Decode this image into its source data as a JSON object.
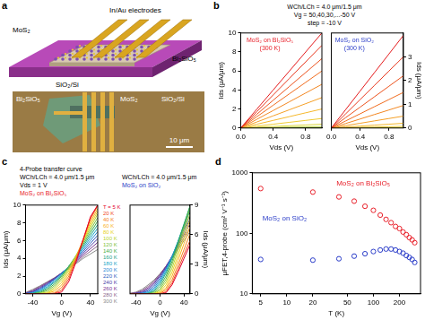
{
  "diagram": {
    "panel": "a",
    "schematic": {
      "top_layer": "MoS₂",
      "electrodes": "In/Au electrodes",
      "dielectric": "Bi₂SiO₅",
      "substrate": "SiO₂/Si"
    },
    "micrograph": {
      "flake": "Bi₂SiO₅",
      "channel": "MoS₂",
      "substrate": "SiO₂/Si",
      "scale_bar": "10 μm"
    }
  },
  "chart_data": [
    {
      "panel": "b",
      "type": "line",
      "header": [
        "WCh/LCh = 4.0 μm/1.5 μm",
        "Vg = 50,40,30,...-50 V",
        "step = -10 V"
      ],
      "annotations": [
        {
          "text": "MoS₂ on Bi₂SiO₅",
          "color": "#e8202a"
        },
        {
          "text": "(300 K)",
          "color": "#e8202a"
        }
      ],
      "x_label": "Vds (V)",
      "y_label": "Ids (μA/μm)",
      "x": [
        0,
        0.2,
        0.4,
        0.6,
        0.8,
        1
      ],
      "xlim": [
        0,
        1
      ],
      "xticks": [
        {
          "value": 0,
          "label": "0.0"
        },
        0.4,
        0.8
      ],
      "ylim": [
        0,
        10
      ],
      "yticks": [
        0,
        2,
        4,
        6,
        8,
        10
      ],
      "grid": false,
      "series": [
        {
          "color": "#e41a1c",
          "values": [
            0,
            2.0,
            4.0,
            6.0,
            8.0,
            10.0
          ]
        },
        {
          "color": "#e8361c",
          "values": [
            0,
            1.74,
            3.48,
            5.22,
            6.96,
            8.7
          ]
        },
        {
          "color": "#ec521d",
          "values": [
            0,
            1.46,
            2.92,
            4.38,
            5.84,
            7.3
          ]
        },
        {
          "color": "#f06c1f",
          "values": [
            0,
            1.2,
            2.4,
            3.6,
            4.8,
            6.0
          ]
        },
        {
          "color": "#f38722",
          "values": [
            0,
            0.92,
            1.84,
            2.76,
            3.68,
            4.6
          ]
        },
        {
          "color": "#f5a026",
          "values": [
            0,
            0.64,
            1.28,
            1.92,
            2.56,
            3.2
          ]
        },
        {
          "color": "#f5b82c",
          "values": [
            0,
            0.4,
            0.8,
            1.2,
            1.6,
            2.0
          ]
        },
        {
          "color": "#efcb33",
          "values": [
            0,
            0.2,
            0.4,
            0.6,
            0.8,
            1.0
          ]
        },
        {
          "color": "#dcd63d",
          "values": [
            0,
            0.08,
            0.16,
            0.24,
            0.32,
            0.4
          ]
        },
        {
          "color": "#bfd84b",
          "values": [
            0,
            0.03,
            0.06,
            0.09,
            0.12,
            0.15
          ]
        },
        {
          "color": "#9ccf5c",
          "values": [
            0,
            0.01,
            0.02,
            0.03,
            0.04,
            0.05
          ]
        }
      ]
    },
    {
      "type": "line",
      "annotations": [
        {
          "text": "MoS₂ on SiO₂",
          "color": "#2a3cc8"
        },
        {
          "text": "(300 K)",
          "color": "#2a3cc8"
        }
      ],
      "x_label": "Vds (V)",
      "y_label": "Ids (μA/μm)",
      "x": [
        0,
        0.2,
        0.4,
        0.6,
        0.8,
        1
      ],
      "xlim": [
        0,
        1
      ],
      "xticks": [
        {
          "value": 0,
          "label": "0.0"
        },
        0.4,
        0.8
      ],
      "ylim": [
        0,
        4
      ],
      "yticks": [
        0,
        1,
        2,
        3
      ],
      "grid": false,
      "series": [
        {
          "color": "#e41a1c",
          "values": [
            0,
            0.78,
            1.56,
            2.34,
            3.12,
            3.9
          ]
        },
        {
          "color": "#e8361c",
          "values": [
            0,
            0.6,
            1.2,
            1.8,
            2.4,
            3.0
          ]
        },
        {
          "color": "#ec521d",
          "values": [
            0,
            0.44,
            0.88,
            1.32,
            1.76,
            2.2
          ]
        },
        {
          "color": "#f06c1f",
          "values": [
            0,
            0.3,
            0.6,
            0.9,
            1.2,
            1.5
          ]
        },
        {
          "color": "#f38722",
          "values": [
            0,
            0.19,
            0.38,
            0.57,
            0.76,
            0.95
          ]
        },
        {
          "color": "#f5a026",
          "values": [
            0,
            0.1,
            0.2,
            0.3,
            0.4,
            0.5
          ]
        },
        {
          "color": "#f5b82c",
          "values": [
            0,
            0.04,
            0.08,
            0.12,
            0.16,
            0.2
          ]
        },
        {
          "color": "#efcb33",
          "values": [
            0,
            0.014,
            0.028,
            0.042,
            0.056,
            0.07
          ]
        },
        {
          "color": "#dcd63d",
          "values": [
            0,
            0.004,
            0.008,
            0.012,
            0.016,
            0.02
          ]
        },
        {
          "color": "#bfd84b",
          "values": [
            0,
            0.002,
            0.004,
            0.006,
            0.008,
            0.01
          ]
        },
        {
          "color": "#9ccf5c",
          "values": [
            0,
            0,
            0,
            0,
            0,
            0
          ]
        }
      ]
    },
    {
      "panel": "c",
      "type": "line",
      "legend": "right",
      "header": [
        "4-Probe transfer curve",
        "WCh/LCh = 4.0 μm/1.5 μm",
        "Vds = 1 V",
        {
          "text": "MoS₂ on Bi₂SiO₅",
          "color": "#e8202a"
        }
      ],
      "x_label": "Vg (V)",
      "y_label": "Ids (μA/μm)",
      "x": [
        -50,
        -40,
        -30,
        -20,
        -10,
        0,
        10,
        20,
        30,
        40,
        50
      ],
      "xlim": [
        -50,
        50
      ],
      "xticks": [
        -40,
        0,
        40
      ],
      "ylim": [
        0,
        10
      ],
      "yticks": [
        0,
        2,
        4,
        6,
        8,
        10
      ],
      "grid": false,
      "series": [
        {
          "name": "T = 5 K",
          "color": "#e4002b",
          "values": [
            0,
            0,
            0,
            0,
            0,
            0.2,
            1.4,
            3.6,
            6.1,
            8.7,
            10.0
          ]
        },
        {
          "name": "20 K",
          "color": "#f04a1e",
          "values": [
            0,
            0,
            0,
            0,
            0.05,
            0.4,
            1.7,
            3.8,
            6.2,
            8.6,
            10.0
          ]
        },
        {
          "name": "40 K",
          "color": "#f7821e",
          "values": [
            0,
            0,
            0,
            0,
            0.1,
            0.7,
            2.0,
            4.0,
            6.2,
            8.4,
            9.9
          ]
        },
        {
          "name": "60 K",
          "color": "#f9b21f",
          "values": [
            0,
            0,
            0,
            0.05,
            0.3,
            1.0,
            2.3,
            4.1,
            6.1,
            8.1,
            9.6
          ]
        },
        {
          "name": "80 K",
          "color": "#e8d21d",
          "values": [
            0,
            0,
            0,
            0.1,
            0.5,
            1.3,
            2.6,
            4.2,
            6.0,
            7.8,
            9.3
          ]
        },
        {
          "name": "100 K",
          "color": "#b8d433",
          "values": [
            0,
            0,
            0.05,
            0.2,
            0.7,
            1.6,
            2.8,
            4.3,
            5.9,
            7.5,
            9.0
          ]
        },
        {
          "name": "120 K",
          "color": "#7cc242",
          "values": [
            0,
            0,
            0.1,
            0.35,
            0.9,
            1.8,
            3.0,
            4.3,
            5.8,
            7.2,
            8.6
          ]
        },
        {
          "name": "140 K",
          "color": "#3fae49",
          "values": [
            0,
            0.02,
            0.15,
            0.5,
            1.1,
            2.0,
            3.1,
            4.3,
            5.6,
            6.9,
            8.2
          ]
        },
        {
          "name": "160 K",
          "color": "#1ea58a",
          "values": [
            0,
            0.05,
            0.25,
            0.65,
            1.3,
            2.1,
            3.1,
            4.2,
            5.4,
            6.6,
            7.8
          ]
        },
        {
          "name": "180 K",
          "color": "#19a8c9",
          "values": [
            0,
            0.08,
            0.35,
            0.8,
            1.4,
            2.2,
            3.1,
            4.1,
            5.2,
            6.3,
            7.4
          ]
        },
        {
          "name": "200 K",
          "color": "#2a8ad5",
          "values": [
            0.02,
            0.12,
            0.45,
            0.95,
            1.55,
            2.3,
            3.1,
            4.0,
            5.0,
            6.0,
            7.0
          ]
        },
        {
          "name": "220 K",
          "color": "#2f5fc0",
          "values": [
            0.03,
            0.18,
            0.55,
            1.05,
            1.65,
            2.3,
            3.05,
            3.9,
            4.8,
            5.7,
            6.6
          ]
        },
        {
          "name": "240 K",
          "color": "#4b3fa8",
          "values": [
            0.05,
            0.25,
            0.65,
            1.15,
            1.7,
            2.35,
            3.0,
            3.75,
            4.6,
            5.4,
            6.2
          ]
        },
        {
          "name": "260 K",
          "color": "#7a3595",
          "values": [
            0.08,
            0.32,
            0.75,
            1.25,
            1.75,
            2.35,
            2.95,
            3.65,
            4.4,
            5.1,
            5.8
          ]
        },
        {
          "name": "280 K",
          "color": "#8e6a8e",
          "values": [
            0.1,
            0.4,
            0.85,
            1.3,
            1.8,
            2.35,
            2.9,
            3.5,
            4.2,
            4.8,
            5.4
          ]
        },
        {
          "name": "300 K",
          "color": "#8c8c8c",
          "values": [
            0.15,
            0.5,
            0.9,
            1.35,
            1.8,
            2.3,
            2.85,
            3.4,
            4.0,
            4.5,
            5.0
          ]
        }
      ]
    },
    {
      "type": "line",
      "header": [
        "WCh/LCh = 4.0 μm/1.5 μm",
        {
          "text": "MoS₂ on SiO₂",
          "color": "#2a3cc8"
        }
      ],
      "x_label": "Vg (V)",
      "y_label": "Ids (μA/μm)",
      "x": [
        -50,
        -40,
        -30,
        -20,
        -10,
        0,
        10,
        20,
        30,
        40,
        50
      ],
      "xlim": [
        -50,
        50
      ],
      "xticks": [
        -40,
        0,
        40
      ],
      "ylim": [
        0,
        9
      ],
      "yticks": [
        0,
        3,
        6,
        9
      ],
      "grid": false,
      "series": [
        {
          "color": "#e4002b",
          "values": [
            0,
            0,
            0,
            0,
            0,
            0,
            0.1,
            0.9,
            2.2,
            3.6,
            5.0
          ]
        },
        {
          "color": "#f04a1e",
          "values": [
            0,
            0,
            0,
            0,
            0,
            0,
            0.2,
            1.1,
            2.5,
            4.0,
            5.4
          ]
        },
        {
          "color": "#f7821e",
          "values": [
            0,
            0,
            0,
            0,
            0,
            0.05,
            0.4,
            1.4,
            2.9,
            4.5,
            6.1
          ]
        },
        {
          "color": "#f9b21f",
          "values": [
            0,
            0,
            0,
            0,
            0,
            0.1,
            0.6,
            1.8,
            3.4,
            5.1,
            6.8
          ]
        },
        {
          "color": "#e8d21d",
          "values": [
            0,
            0,
            0,
            0,
            0.02,
            0.2,
            0.9,
            2.2,
            3.9,
            5.7,
            7.5
          ]
        },
        {
          "color": "#b8d433",
          "values": [
            0,
            0,
            0,
            0,
            0.05,
            0.35,
            1.2,
            2.6,
            4.4,
            6.3,
            8.1
          ]
        },
        {
          "color": "#7cc242",
          "values": [
            0,
            0,
            0,
            0,
            0.1,
            0.5,
            1.5,
            3.0,
            4.8,
            6.7,
            8.6
          ]
        },
        {
          "color": "#3fae49",
          "values": [
            0,
            0,
            0,
            0.02,
            0.2,
            0.75,
            1.8,
            3.3,
            5.1,
            7.0,
            8.9
          ]
        },
        {
          "color": "#1ea58a",
          "values": [
            0,
            0,
            0,
            0.05,
            0.3,
            1.0,
            2.1,
            3.6,
            5.3,
            7.1,
            8.9
          ]
        },
        {
          "color": "#19a8c9",
          "values": [
            0,
            0,
            0.02,
            0.1,
            0.45,
            1.2,
            2.3,
            3.7,
            5.3,
            7.0,
            8.7
          ]
        },
        {
          "color": "#2a8ad5",
          "values": [
            0,
            0,
            0.05,
            0.2,
            0.6,
            1.4,
            2.5,
            3.8,
            5.3,
            6.9,
            8.4
          ]
        },
        {
          "color": "#2f5fc0",
          "values": [
            0,
            0.02,
            0.1,
            0.3,
            0.8,
            1.6,
            2.6,
            3.8,
            5.2,
            6.6,
            8.0
          ]
        },
        {
          "color": "#4b3fa8",
          "values": [
            0,
            0.05,
            0.15,
            0.45,
            1.0,
            1.8,
            2.7,
            3.8,
            5.0,
            6.3,
            7.6
          ]
        },
        {
          "color": "#7a3595",
          "values": [
            0.02,
            0.08,
            0.25,
            0.6,
            1.15,
            1.9,
            2.8,
            3.8,
            4.9,
            6.0,
            7.1
          ]
        },
        {
          "color": "#8e6a8e",
          "values": [
            0.03,
            0.12,
            0.35,
            0.75,
            1.3,
            2.0,
            2.8,
            3.7,
            4.7,
            5.7,
            6.7
          ]
        },
        {
          "color": "#8c8c8c",
          "values": [
            0.05,
            0.18,
            0.45,
            0.9,
            1.4,
            2.05,
            2.8,
            3.6,
            4.5,
            5.4,
            6.3
          ]
        }
      ]
    },
    {
      "panel": "d",
      "type": "scatter",
      "marker": "circle",
      "log": true,
      "x_label": "T (K)",
      "y_label": "μFET,4-probe (cm² V⁻¹ s⁻¹)",
      "x": [
        5,
        20,
        40,
        60,
        80,
        100,
        120,
        140,
        160,
        180,
        200,
        220,
        240,
        260,
        280,
        300
      ],
      "xlim": [
        4,
        350
      ],
      "xticks": [
        5,
        10,
        20,
        50,
        100,
        200
      ],
      "ylim": [
        10,
        1000
      ],
      "yticks": [
        10,
        100,
        1000
      ],
      "grid": false,
      "series": [
        {
          "name": "MoS₂ on Bi₂SiO₅",
          "color": "#e8202a",
          "values": [
            550,
            480,
            400,
            340,
            280,
            240,
            200,
            170,
            150,
            130,
            120,
            105,
            95,
            85,
            78,
            70
          ]
        },
        {
          "name": "MoS₂ on SiO₂",
          "color": "#2a3cc8",
          "values": [
            37,
            36,
            38,
            42,
            46,
            50,
            53,
            55,
            55,
            53,
            50,
            47,
            43,
            40,
            37,
            33
          ]
        }
      ]
    }
  ]
}
